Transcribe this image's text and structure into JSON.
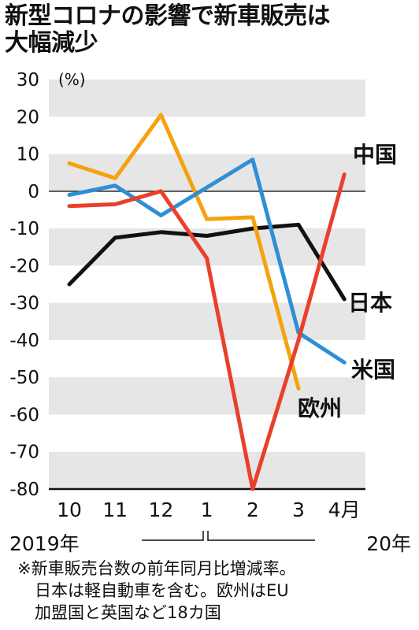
{
  "title_lines": [
    "新型コロナの影響で新車販売は",
    "大幅減少"
  ],
  "note_lines": [
    "※新車販売台数の前年同月比増減率。",
    "日本は軽自動車を含む。欧州はEU",
    "加盟国と英国など18カ国"
  ],
  "chart_data": {
    "type": "line",
    "title": "新型コロナの影響で新車販売は大幅減少",
    "ylabel": "(%)",
    "ylim": [
      -80,
      30
    ],
    "yticks": [
      30,
      20,
      10,
      0,
      -10,
      -20,
      -30,
      -40,
      -50,
      -60,
      -70,
      -80
    ],
    "categories": [
      "10",
      "11",
      "12",
      "1",
      "2",
      "3",
      "4月"
    ],
    "year_labels": [
      "2019年",
      "20年"
    ],
    "grid": "alternating horizontal bands",
    "series": [
      {
        "name": "中国",
        "color": "#e8412b",
        "values": [
          -4,
          -3.5,
          0,
          -18,
          -80,
          -40,
          4.5
        ]
      },
      {
        "name": "日本",
        "color": "#111111",
        "values": [
          -25,
          -12.5,
          -11,
          -12,
          -10,
          -9,
          -29
        ]
      },
      {
        "name": "米国",
        "color": "#2f8fd5",
        "values": [
          -1,
          1.5,
          -6.5,
          1,
          8.5,
          -38,
          -46
        ]
      },
      {
        "name": "欧州",
        "color": "#f5a20e",
        "values": [
          7.5,
          3.5,
          20.5,
          -7.5,
          -7,
          -53,
          null
        ]
      }
    ]
  }
}
